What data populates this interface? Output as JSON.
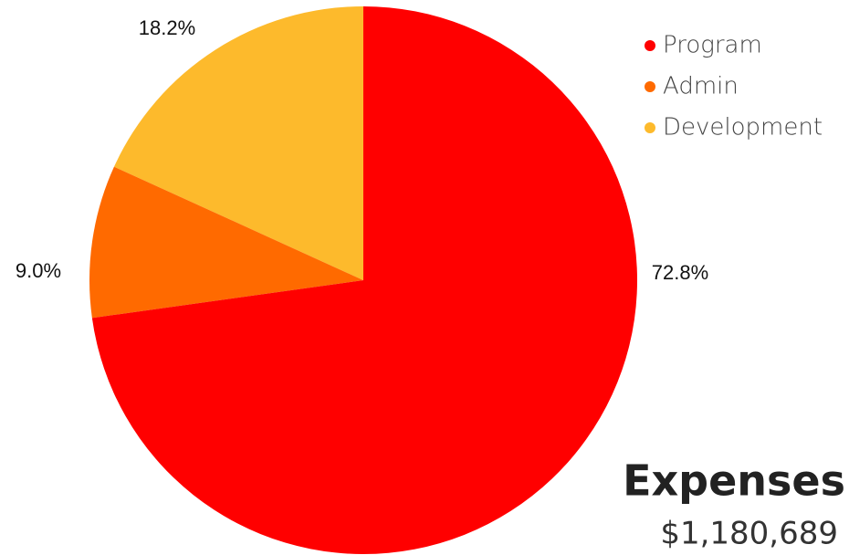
{
  "chart_data": {
    "type": "pie",
    "title": "Expenses",
    "subtitle": "$1,180,689",
    "categories": [
      "Program",
      "Admin",
      "Development"
    ],
    "values": [
      72.8,
      9.0,
      18.2
    ],
    "value_labels": [
      "72.8%",
      "9.0%",
      "18.2%"
    ],
    "colors": [
      "#ff0000",
      "#ff6a00",
      "#fdba2c"
    ],
    "legend": "top-right"
  }
}
